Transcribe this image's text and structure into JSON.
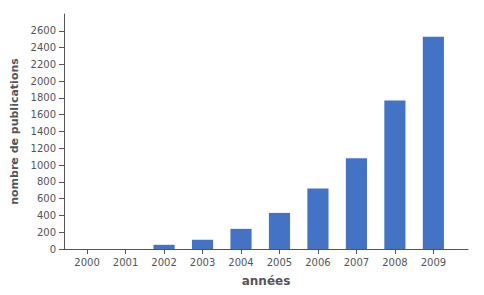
{
  "chart_data": {
    "type": "bar",
    "x": [
      2000,
      2001,
      2002,
      2003,
      2004,
      2005,
      2006,
      2007,
      2008,
      2009
    ],
    "values": [
      0,
      0,
      50,
      110,
      240,
      430,
      720,
      1080,
      1770,
      2530
    ],
    "color": "#4472C4",
    "xlabel": "années",
    "ylabel": "nombre de publications",
    "xlim": [
      1999.4,
      2009.9
    ],
    "xticks": [
      2000,
      2001,
      2002,
      2003,
      2004,
      2005,
      2006,
      2007,
      2008,
      2009
    ],
    "ylim": [
      0,
      2800
    ],
    "yticks": [
      0,
      200,
      400,
      600,
      800,
      1000,
      1200,
      1400,
      1600,
      1800,
      2000,
      2200,
      2400,
      2600
    ],
    "grid": false
  }
}
